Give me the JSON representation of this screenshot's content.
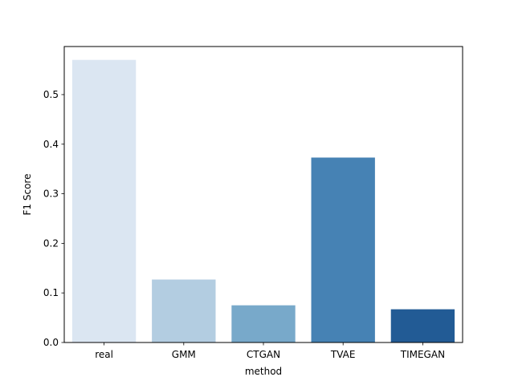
{
  "chart_data": {
    "type": "bar",
    "title": "",
    "xlabel": "method",
    "ylabel": "F1 Score",
    "categories": [
      "real",
      "GMM",
      "CTGAN",
      "TVAE",
      "TIMEGAN"
    ],
    "values": [
      0.57,
      0.127,
      0.075,
      0.373,
      0.067
    ],
    "bar_colors": [
      "#dbe6f2",
      "#b3cde1",
      "#78a9ca",
      "#4682b4",
      "#225b95"
    ],
    "ylim": [
      0,
      0.597
    ],
    "yticks": [
      0.0,
      0.1,
      0.2,
      0.3,
      0.4,
      0.5
    ],
    "ytick_labels": [
      "0.0",
      "0.1",
      "0.2",
      "0.3",
      "0.4",
      "0.5"
    ],
    "grid": false,
    "legend": "none"
  }
}
